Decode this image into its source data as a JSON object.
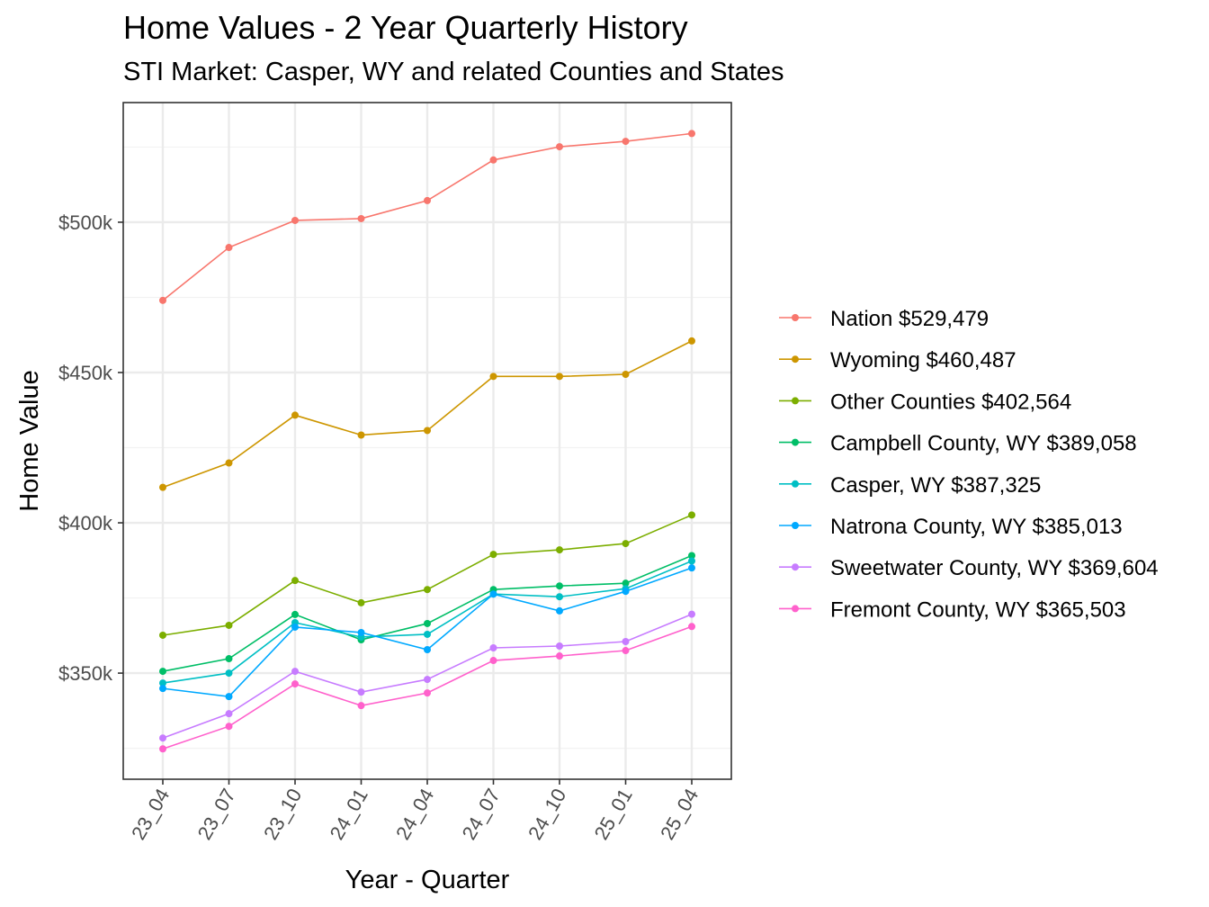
{
  "chart_data": {
    "type": "line",
    "title": "Home Values - 2 Year Quarterly History",
    "subtitle": "STI Market: Casper, WY and related Counties and States",
    "xlabel": "Year - Quarter",
    "ylabel": "Home Value",
    "categories": [
      "23_04",
      "23_07",
      "23_10",
      "24_01",
      "24_04",
      "24_07",
      "24_10",
      "25_01",
      "25_04"
    ],
    "ylim": [
      314.7,
      539.8
    ],
    "y_unit": "thousand USD",
    "y_ticks": [
      350,
      400,
      450,
      500
    ],
    "y_tick_labels": [
      "$350k",
      "$400k",
      "$450k",
      "$500k"
    ],
    "grid": true,
    "legend_position": "right",
    "series": [
      {
        "name": "Nation $529,479",
        "color": "#F8766D",
        "values": [
          474.0,
          491.6,
          500.6,
          501.2,
          507.2,
          520.7,
          525.1,
          526.9,
          529.5
        ]
      },
      {
        "name": "Wyoming $460,487",
        "color": "#CD9600",
        "values": [
          411.8,
          419.9,
          435.8,
          429.2,
          430.7,
          448.7,
          448.7,
          449.4,
          460.5
        ]
      },
      {
        "name": "Other Counties $402,564",
        "color": "#7CAE00",
        "values": [
          362.6,
          365.9,
          380.8,
          373.4,
          377.8,
          389.5,
          391.0,
          393.1,
          402.6
        ]
      },
      {
        "name": "Campbell County, WY $389,058",
        "color": "#00BE67",
        "values": [
          350.6,
          354.8,
          369.5,
          361.1,
          366.5,
          377.8,
          379.0,
          379.9,
          389.1
        ]
      },
      {
        "name": "Casper, WY $387,325",
        "color": "#00BFC4",
        "values": [
          346.7,
          350.0,
          366.8,
          362.0,
          362.9,
          376.3,
          375.4,
          378.1,
          387.3
        ]
      },
      {
        "name": "Natrona County, WY $385,013",
        "color": "#00A9FF",
        "values": [
          344.9,
          342.2,
          365.3,
          363.5,
          357.8,
          376.3,
          370.7,
          377.2,
          385.0
        ]
      },
      {
        "name": "Sweetwater County, WY $369,604",
        "color": "#C77CFF",
        "values": [
          328.4,
          336.5,
          350.6,
          343.7,
          347.9,
          358.4,
          359.0,
          360.5,
          369.6
        ]
      },
      {
        "name": "Fremont County, WY $365,503",
        "color": "#FF61CC",
        "values": [
          324.8,
          332.3,
          346.4,
          339.2,
          343.4,
          354.2,
          355.7,
          357.5,
          365.5
        ]
      }
    ]
  }
}
